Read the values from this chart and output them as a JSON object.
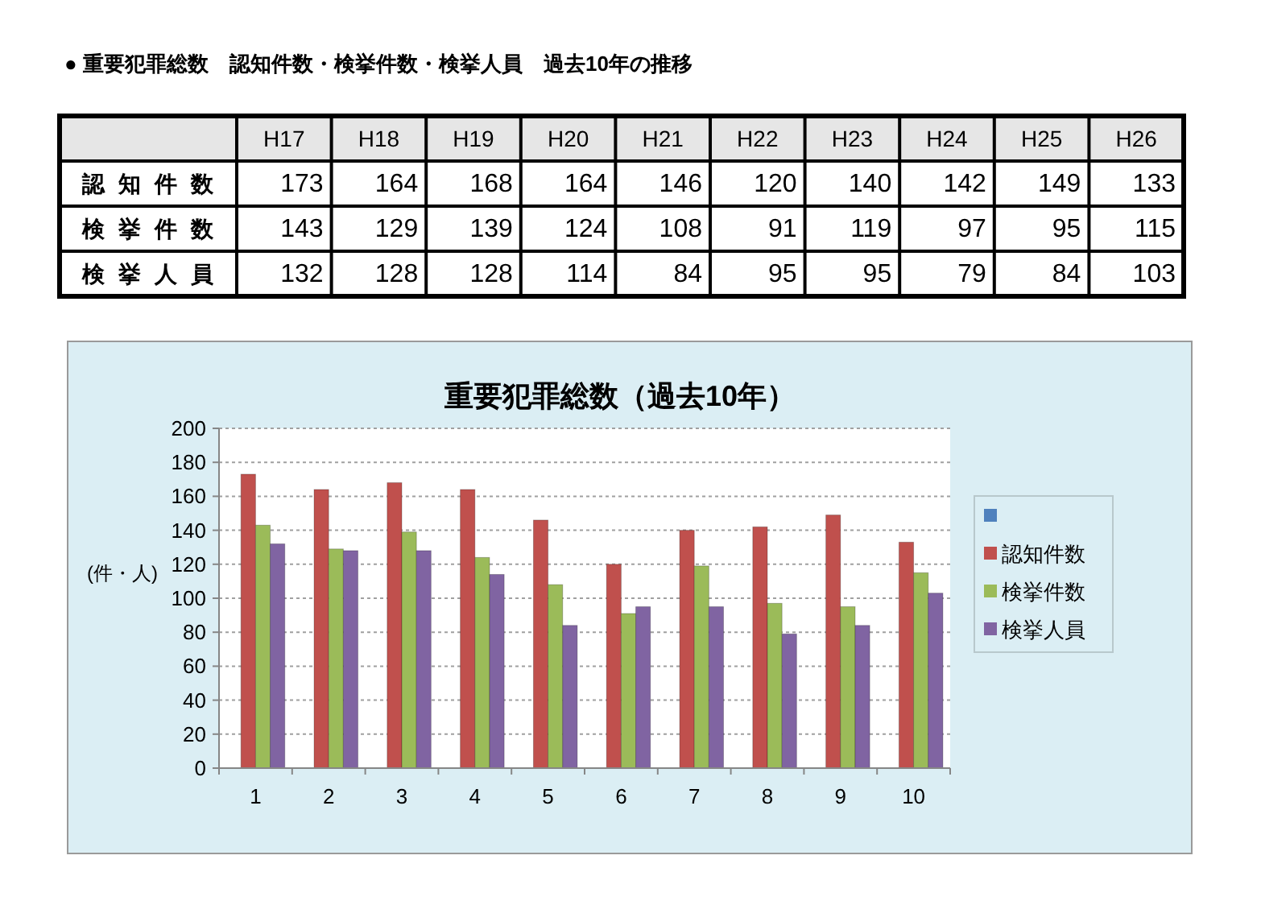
{
  "chart_data": [
    {
      "type": "other",
      "title": "● 重要犯罪総数　認知件数・検挙件数・検挙人員　過去10年の推移",
      "categories": [
        "H17",
        "H18",
        "H19",
        "H20",
        "H21",
        "H22",
        "H23",
        "H24",
        "H25",
        "H26"
      ],
      "data_labels": true,
      "series": [
        {
          "name": "認知件数",
          "values": [
            173,
            164,
            168,
            164,
            146,
            120,
            140,
            142,
            149,
            133
          ]
        },
        {
          "name": "検挙件数",
          "values": [
            143,
            129,
            139,
            124,
            108,
            91,
            119,
            97,
            95,
            115
          ]
        },
        {
          "name": "検挙人員",
          "values": [
            132,
            128,
            128,
            114,
            84,
            95,
            95,
            79,
            84,
            103
          ]
        }
      ]
    },
    {
      "type": "bar",
      "title": "重要犯罪総数（過去10年）",
      "ylabel": "(件・人)",
      "categories": [
        "1",
        "2",
        "3",
        "4",
        "5",
        "6",
        "7",
        "8",
        "9",
        "10"
      ],
      "series": [
        {
          "color": "#4f81bd",
          "values": [
            null,
            null,
            null,
            null,
            null,
            null,
            null,
            null,
            null,
            null
          ]
        },
        {
          "name": "認知件数",
          "color": "#c0504d",
          "values": [
            173,
            164,
            168,
            164,
            146,
            120,
            140,
            142,
            149,
            133
          ]
        },
        {
          "name": "検挙件数",
          "color": "#9bbb59",
          "values": [
            143,
            129,
            139,
            124,
            108,
            91,
            119,
            97,
            95,
            115
          ]
        },
        {
          "name": "検挙人員",
          "color": "#8064a2",
          "values": [
            132,
            128,
            128,
            114,
            84,
            95,
            95,
            79,
            84,
            103
          ]
        }
      ],
      "ylim": [
        0,
        200
      ],
      "yticks": [
        0,
        20,
        40,
        60,
        80,
        100,
        120,
        140,
        160,
        180,
        200
      ],
      "grid": "y",
      "legend": "right"
    }
  ]
}
